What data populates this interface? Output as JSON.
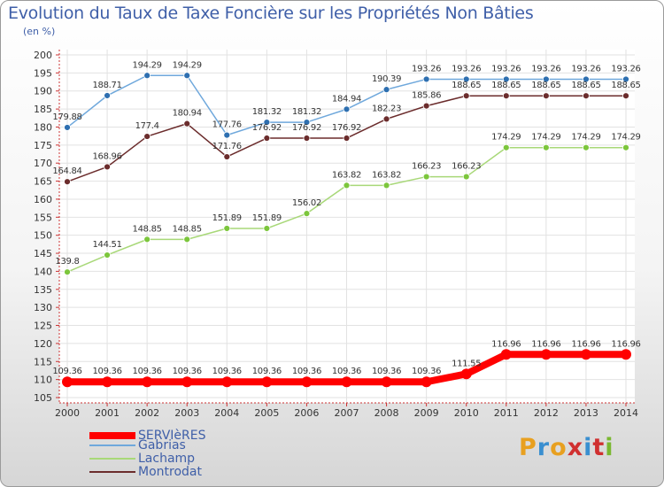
{
  "header": {
    "title": "Evolution du Taux de Taxe Foncière sur les Propriétés Non Bâties",
    "subtitle": "(en %)"
  },
  "brand": {
    "text": "Proxiti",
    "letters": [
      {
        "char": "P",
        "color": "#e8a020"
      },
      {
        "char": "r",
        "color": "#3a8fd0"
      },
      {
        "char": "o",
        "color": "#e8a020"
      },
      {
        "char": "x",
        "color": "#d03030"
      },
      {
        "char": "i",
        "color": "#3a8fd0"
      },
      {
        "char": "t",
        "color": "#d03030"
      },
      {
        "char": "i",
        "color": "#7ab830"
      }
    ]
  },
  "chart_data": {
    "type": "line",
    "title": "Evolution du Taux de Taxe Foncière sur les Propriétés Non Bâties",
    "ylabel": "(en %)",
    "xlabel": "",
    "x": [
      "2000",
      "2001",
      "2002",
      "2003",
      "2004",
      "2005",
      "2006",
      "2007",
      "2008",
      "2009",
      "2010",
      "2011",
      "2012",
      "2013",
      "2014"
    ],
    "ylim": [
      105,
      200
    ],
    "yticks": [
      105,
      110,
      115,
      120,
      125,
      130,
      135,
      140,
      145,
      150,
      155,
      160,
      165,
      170,
      175,
      180,
      185,
      190,
      195,
      200
    ],
    "grid": true,
    "legend": "bottom-left",
    "series": [
      {
        "name": "SERVIèRES",
        "color": "#ff0000",
        "values": [
          109.36,
          109.36,
          109.36,
          109.36,
          109.36,
          109.36,
          109.36,
          109.36,
          109.36,
          109.36,
          111.55,
          116.96,
          116.96,
          116.96,
          116.96
        ],
        "labels": [
          "109.36",
          "109.36",
          "109.36",
          "109.36",
          "109.36",
          "109.36",
          "109.36",
          "109.36",
          "109.36",
          "109.36",
          "111.55",
          "116.96",
          "116.96",
          "116.96",
          "116.96"
        ]
      },
      {
        "name": "Gabrias",
        "color": "#6fa8dc",
        "values": [
          179.88,
          188.71,
          194.29,
          194.29,
          177.76,
          181.32,
          181.32,
          184.94,
          190.39,
          193.26,
          193.26,
          193.26,
          193.26,
          193.26,
          193.26
        ],
        "labels": [
          "179.88",
          "188.71",
          "194.29",
          "194.29",
          "177.76",
          "181.32",
          "181.32",
          "184.94",
          "190.39",
          "193.26",
          "193.26",
          "193.26",
          "193.26",
          "193.26",
          "193.26"
        ]
      },
      {
        "name": "Lachamp",
        "color": "#a8d878",
        "values": [
          139.8,
          144.51,
          148.85,
          148.85,
          151.89,
          151.89,
          156.02,
          163.82,
          163.82,
          166.23,
          166.23,
          174.29,
          174.29,
          174.29,
          174.29
        ],
        "labels": [
          "139.8",
          "144.51",
          "148.85",
          "148.85",
          "151.89",
          "151.89",
          "156.02",
          "163.82",
          "163.82",
          "166.23",
          "166.23",
          "174.29",
          "174.29",
          "174.29",
          "174.29"
        ]
      },
      {
        "name": "Montrodat",
        "color": "#6b2c2c",
        "values": [
          164.84,
          168.96,
          177.4,
          180.94,
          171.76,
          176.92,
          176.92,
          176.92,
          182.23,
          185.86,
          188.65,
          188.65,
          188.65,
          188.65,
          188.65
        ],
        "labels": [
          "164.84",
          "168.96",
          "177.4",
          "180.94",
          "171.76",
          "176.92",
          "176.92",
          "176.92",
          "182.23",
          "185.86",
          "188.65",
          "188.65",
          "188.65",
          "188.65",
          "188.65"
        ]
      }
    ]
  }
}
